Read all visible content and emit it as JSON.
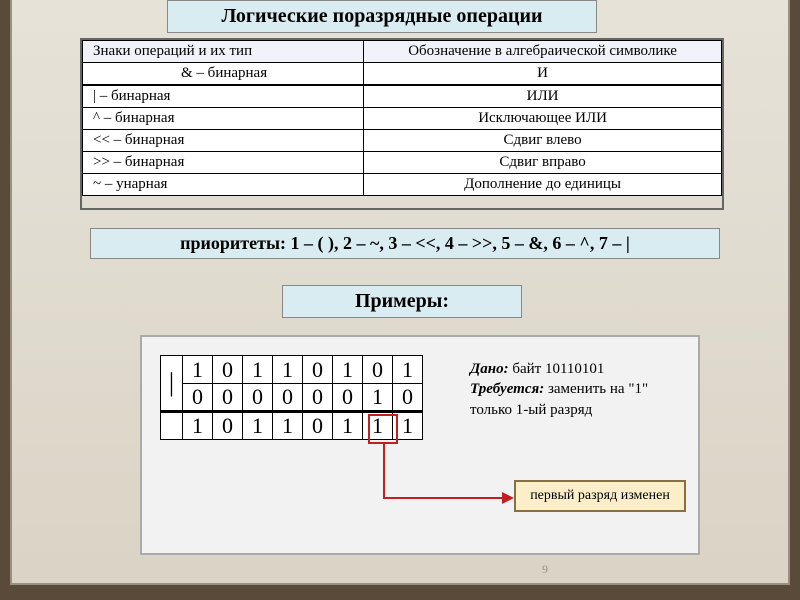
{
  "title": "Логические поразрядные операции",
  "ops_table": {
    "headers": [
      "Знаки операций и их тип",
      "Обозначение в алгебраической символике"
    ],
    "rows": [
      [
        "& – бинарная",
        "И"
      ],
      [
        "| – бинарная",
        "ИЛИ"
      ],
      [
        "^ – бинарная",
        "Исключающее ИЛИ"
      ],
      [
        "<< – бинарная",
        "Сдвиг влево"
      ],
      [
        ">> – бинарная",
        "Сдвиг вправо"
      ],
      [
        "~ – унарная",
        "Дополнение до единицы"
      ]
    ],
    "heavy_sep_after": [
      0
    ]
  },
  "priority": {
    "label": "приоритеты:",
    "text": " 1 – ( ), 2 – ~, 3 – <<, 4 – >>, 5 – &, 6 – ^, 7 – |"
  },
  "examples_label": "Примеры:",
  "example": {
    "operator": "|",
    "row_a": [
      "1",
      "0",
      "1",
      "1",
      "0",
      "1",
      "0",
      "1"
    ],
    "row_b": [
      "0",
      "0",
      "0",
      "0",
      "0",
      "0",
      "1",
      "0"
    ],
    "row_r": [
      "1",
      "0",
      "1",
      "1",
      "0",
      "1",
      "1",
      "1"
    ],
    "highlight_col": 6,
    "given_label": "Дано:",
    "given_text": " байт 10110101",
    "req_label": "Требуется:",
    "req_text": " заменить на \"1\" только 1-ый разряд",
    "result_text": "первый разряд изменен"
  },
  "colors": {
    "page_bg": "#5a4a3a",
    "panel_bg": "#dad4c6",
    "box_bg": "#d9ecf2",
    "example_bg": "#f2f2f2",
    "result_bg": "#fceec8",
    "highlight": "#c02020"
  },
  "footer": {
    "date": "",
    "page": "9"
  }
}
